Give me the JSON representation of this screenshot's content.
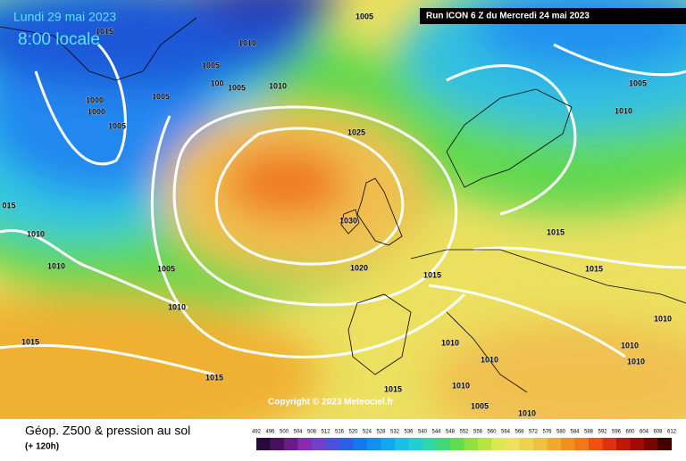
{
  "header": {
    "date": "Lundi 29 mai 2023",
    "time": "8:00 locale",
    "run": "Run ICON 6 Z du Mercredi 24 mai 2023"
  },
  "isobar_labels": [
    "1005",
    "1015",
    "1010",
    "1005",
    "100",
    "1005",
    "1010",
    "1005",
    "1000",
    "1000",
    "1005",
    "1025",
    "1005",
    "1010",
    "015",
    "1010",
    "1010",
    "1005",
    "1010",
    "1030",
    "1020",
    "1015",
    "1015",
    "1015",
    "1010",
    "1015",
    "1010",
    "1010",
    "1010",
    "1010",
    "1015",
    "1015",
    "1010",
    "1005",
    "1010"
  ],
  "copyright": "Copyright © 2023 Meteociel.fr",
  "legend": {
    "title": "Géop. Z500 & pression au sol",
    "lead": "(+ 120h)",
    "scale": [
      492,
      496,
      500,
      504,
      508,
      512,
      516,
      520,
      524,
      528,
      532,
      536,
      540,
      544,
      548,
      552,
      556,
      560,
      564,
      568,
      572,
      576,
      580,
      584,
      588,
      592,
      596,
      600,
      604,
      608,
      612
    ],
    "colors": [
      "#2a0a3a",
      "#4a1060",
      "#6a1a8a",
      "#8a2ab0",
      "#7040c8",
      "#4a50d8",
      "#2a60e8",
      "#1478f0",
      "#1090f0",
      "#10a8f0",
      "#18c0e8",
      "#20d0d0",
      "#30d8a8",
      "#40d878",
      "#60dc50",
      "#90e040",
      "#b8e440",
      "#dce850",
      "#f0e060",
      "#f0d050",
      "#f0c040",
      "#f0a830",
      "#f09020",
      "#f07818",
      "#f05010",
      "#e03010",
      "#c01808",
      "#a00a08",
      "#780404",
      "#400000"
    ]
  }
}
